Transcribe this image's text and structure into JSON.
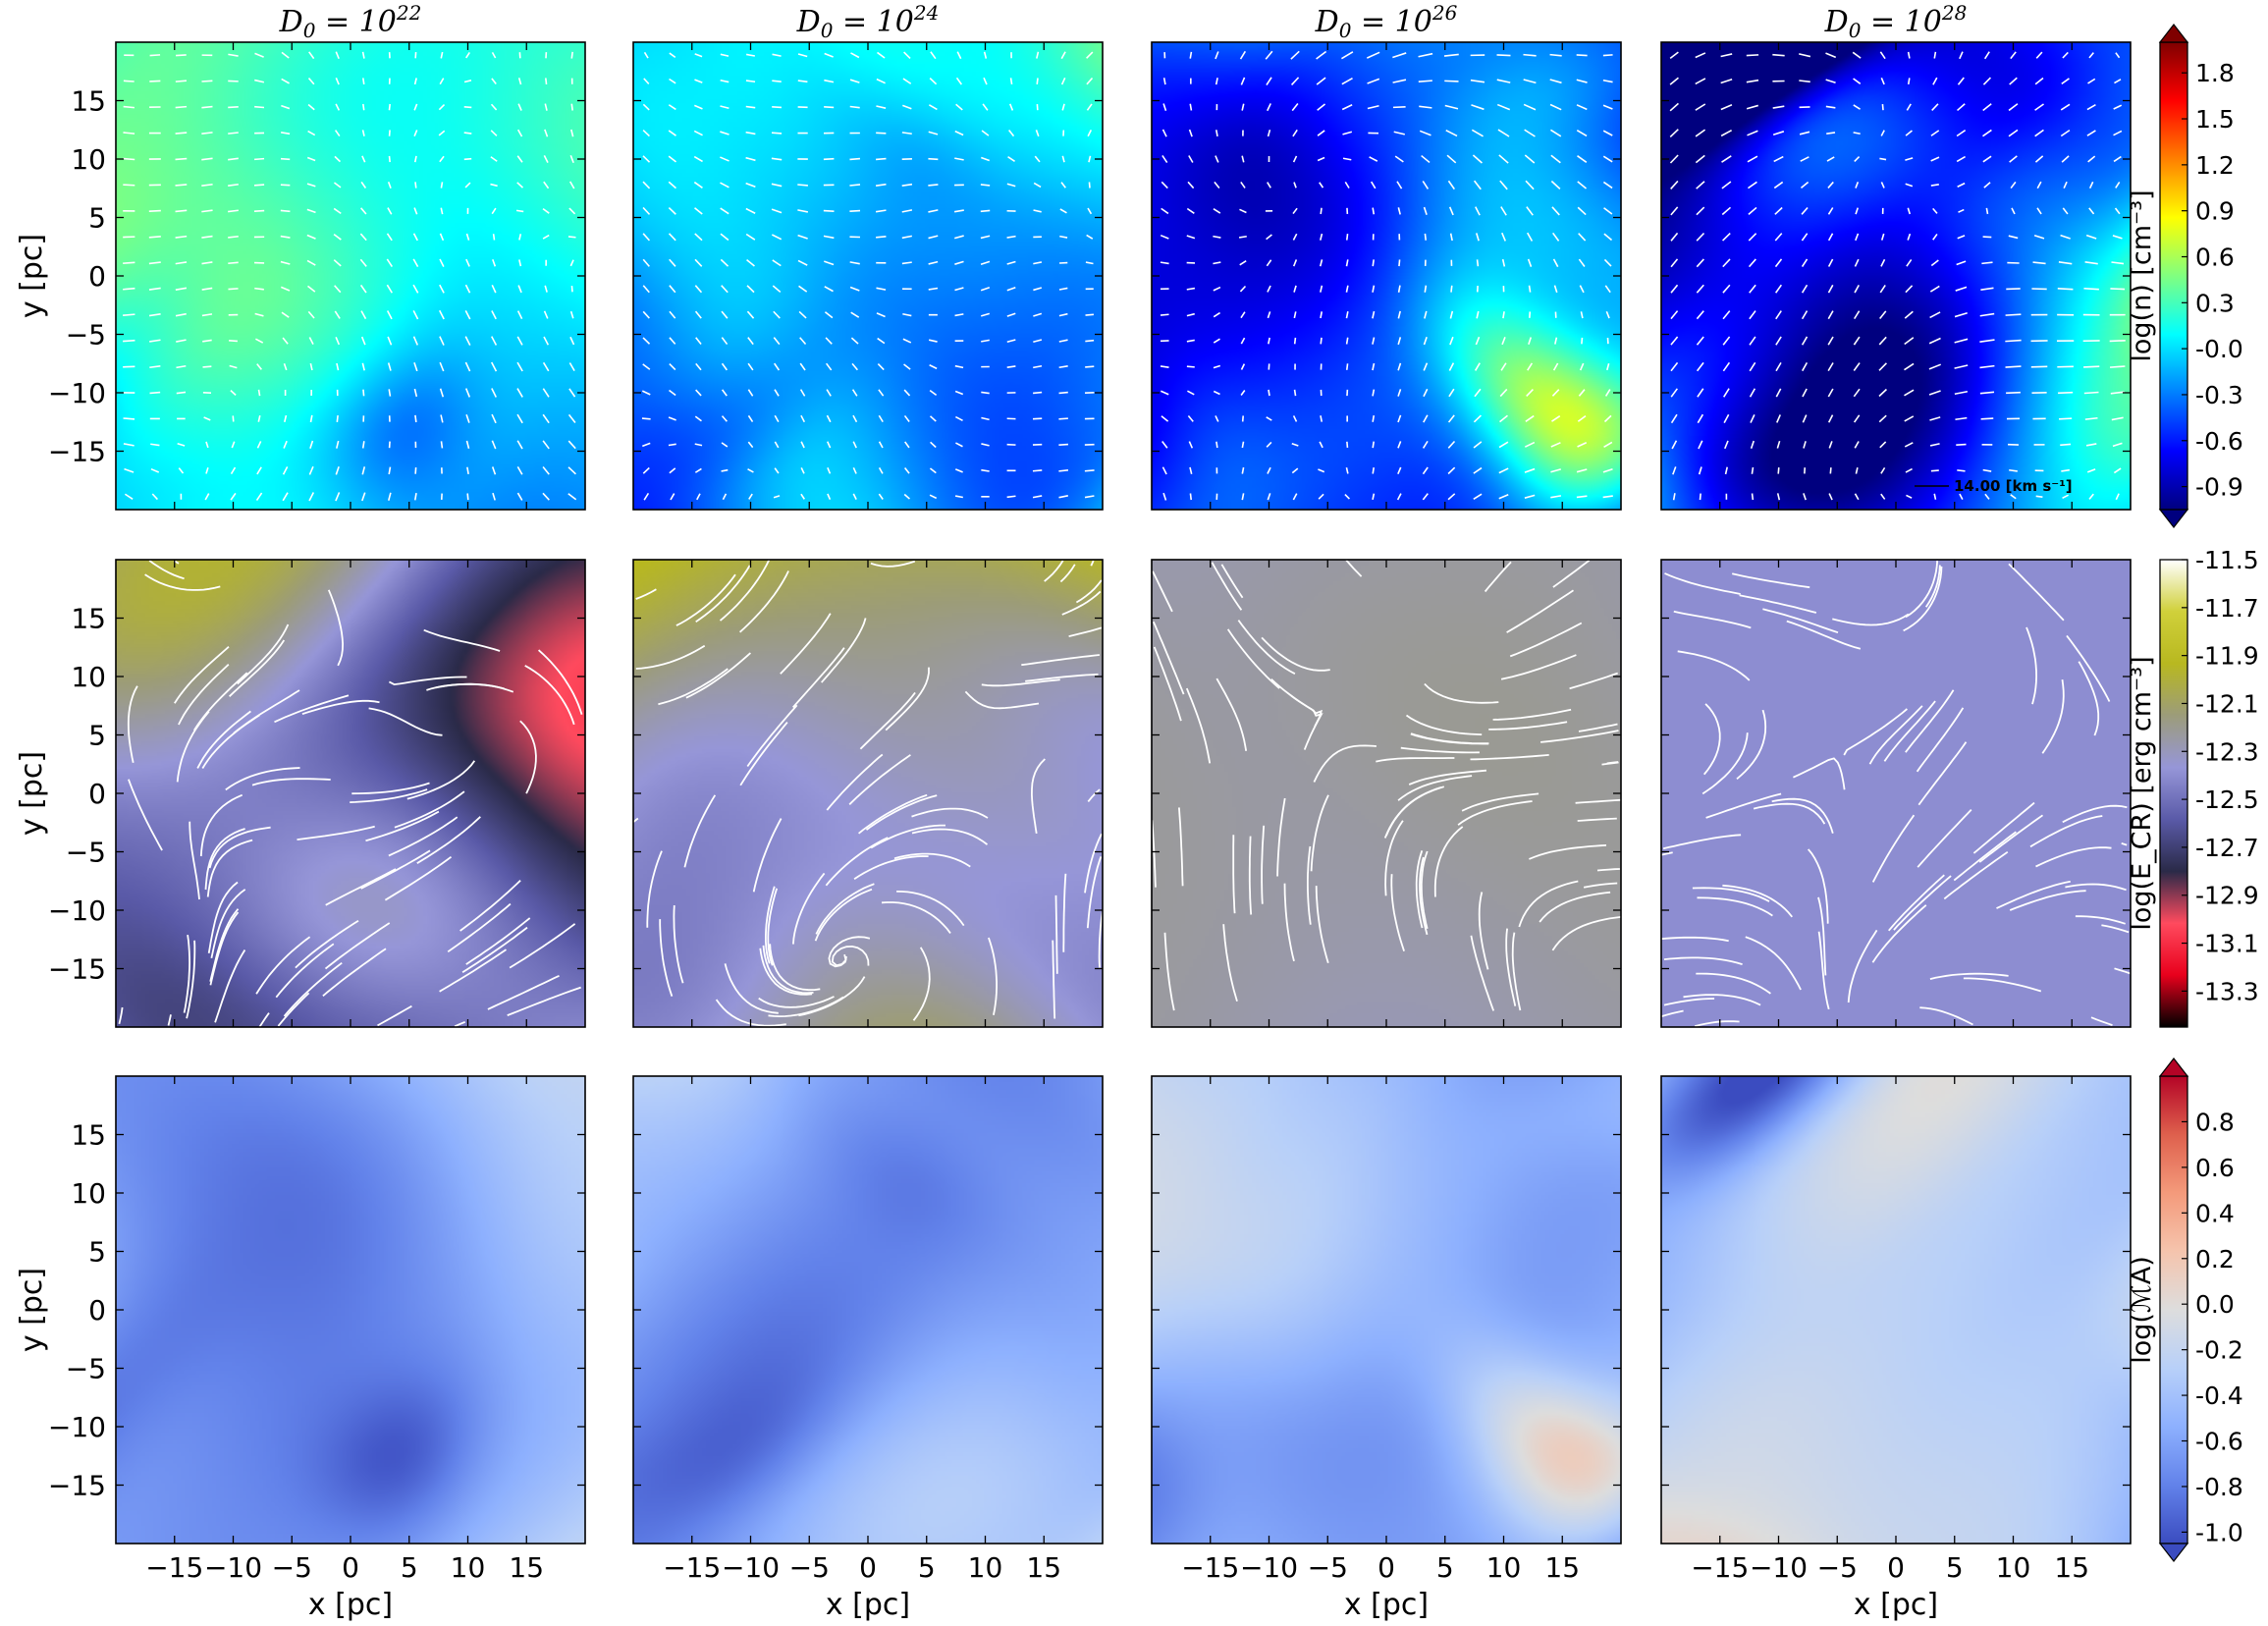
{
  "chart_data": {
    "type": "heatmap",
    "columns": [
      {
        "title_base": "D",
        "title_sub": "0",
        "title_eq": " = 10",
        "title_sup": "22"
      },
      {
        "title_base": "D",
        "title_sub": "0",
        "title_eq": " = 10",
        "title_sup": "24"
      },
      {
        "title_base": "D",
        "title_sub": "0",
        "title_eq": " = 10",
        "title_sup": "26"
      },
      {
        "title_base": "D",
        "title_sub": "0",
        "title_eq": " = 10",
        "title_sup": "28"
      }
    ],
    "xlabel": "x [pc]",
    "ylabel": "y [pc]",
    "xlim": [
      -20,
      20
    ],
    "ylim": [
      -20,
      20
    ],
    "x_ticks": [
      -15,
      -10,
      -5,
      0,
      5,
      10,
      15
    ],
    "x_tick_labels": [
      "−15",
      "−10",
      "−5",
      "0",
      "5",
      "10",
      "15"
    ],
    "y_ticks": [
      15,
      10,
      5,
      0,
      -5,
      -10,
      -15
    ],
    "y_tick_labels": [
      "15",
      "10",
      "5",
      "0",
      "−5",
      "−10",
      "−15"
    ],
    "rows": [
      {
        "quantity": "log(n)",
        "colorbar_label": "log(n) [cm⁻³]",
        "colormap": "jet",
        "colormap_stops": [
          "#00007f",
          "#0000ff",
          "#0080ff",
          "#00ffff",
          "#80ff80",
          "#ffff00",
          "#ff8000",
          "#ff0000",
          "#7f0000"
        ],
        "colorbar_range": [
          -1.05,
          2.0
        ],
        "colorbar_ticks": [
          1.8,
          1.5,
          1.2,
          0.9,
          0.6,
          0.3,
          -0.0,
          -0.3,
          -0.6,
          -0.9
        ],
        "colorbar_tick_labels": [
          "1.8",
          "1.5",
          "1.2",
          "0.9",
          "0.6",
          "0.3",
          "-0.0",
          "-0.3",
          "-0.6",
          "-0.9"
        ],
        "colorbar_extend": "both",
        "overlay": "velocity vectors",
        "panel_mean": [
          0.15,
          -0.05,
          -0.2,
          -0.25
        ],
        "panel_contrast": [
          0.35,
          0.45,
          0.6,
          0.65
        ],
        "legend_text": "14.00 [km s⁻¹]"
      },
      {
        "quantity": "log(E_CR)",
        "colorbar_label": "log(E_CR) [erg cm⁻³]",
        "colormap": "gist_stern-like",
        "colormap_stops": [
          "#000000",
          "#e8001c",
          "#ff4a5e",
          "#2a2a48",
          "#5a5aa8",
          "#9696d8",
          "#9c9c7a",
          "#b8b820",
          "#d0d03a",
          "#ffffff"
        ],
        "colorbar_range": [
          -13.45,
          -11.5
        ],
        "colorbar_ticks": [
          -11.5,
          -11.7,
          -11.9,
          -12.1,
          -12.3,
          -12.5,
          -12.7,
          -12.9,
          -13.1,
          -13.3
        ],
        "colorbar_tick_labels": [
          "-11.5",
          "-11.7",
          "-11.9",
          "-12.1",
          "-12.3",
          "-12.5",
          "-12.7",
          "-12.9",
          "-13.1",
          "-13.3"
        ],
        "colorbar_extend": "neither",
        "overlay": "streamlines",
        "panel_mean": [
          -12.35,
          -12.25,
          -12.25,
          -12.4
        ],
        "panel_contrast": [
          0.35,
          0.28,
          0.05,
          0.0
        ]
      },
      {
        "quantity": "log(M_A)",
        "colorbar_label": "log(ℳA)",
        "colormap": "coolwarm",
        "colormap_stops": [
          "#3b4cc0",
          "#6282ea",
          "#8db0fe",
          "#b8d0f9",
          "#dddddd",
          "#f5c4ad",
          "#f49a7b",
          "#de604d",
          "#b40426"
        ],
        "colorbar_range": [
          -1.05,
          1.0
        ],
        "colorbar_ticks": [
          0.8,
          0.6,
          0.4,
          0.2,
          0.0,
          -0.2,
          -0.4,
          -0.6,
          -0.8,
          -1.0
        ],
        "colorbar_tick_labels": [
          "0.8",
          "0.6",
          "0.4",
          "0.2",
          "0.0",
          "-0.2",
          "-0.4",
          "-0.6",
          "-0.8",
          "-1.0"
        ],
        "colorbar_extend": "both",
        "overlay": "none",
        "panel_mean": [
          -0.4,
          -0.45,
          -0.45,
          -0.45
        ],
        "panel_contrast": [
          0.32,
          0.35,
          0.35,
          0.38
        ]
      }
    ],
    "grid": false
  }
}
